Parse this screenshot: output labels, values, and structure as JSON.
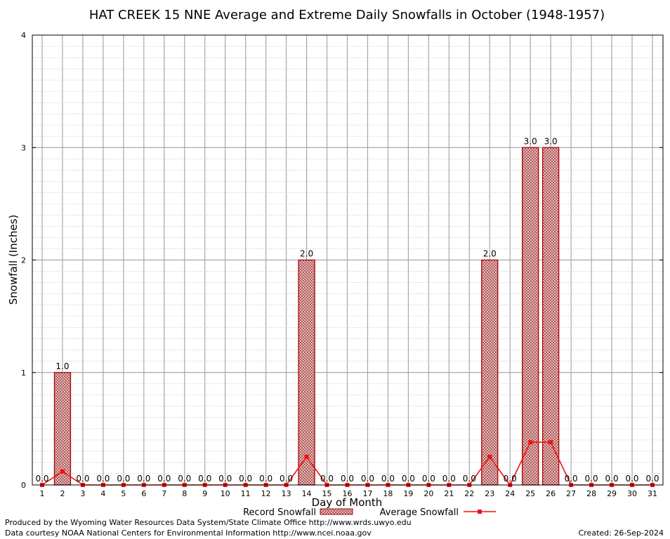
{
  "chart_data": {
    "type": "bar",
    "title": "HAT CREEK 15 NNE Average and Extreme Daily Snowfalls in October (1948-1957)",
    "xlabel": "Day of Month",
    "ylabel": "Snowfall (Inches)",
    "ylim": [
      0,
      4
    ],
    "yticks": [
      "0",
      "1",
      "2",
      "3",
      "4"
    ],
    "categories": [
      "1",
      "2",
      "3",
      "4",
      "5",
      "6",
      "7",
      "8",
      "9",
      "10",
      "11",
      "12",
      "13",
      "14",
      "15",
      "16",
      "17",
      "18",
      "19",
      "20",
      "21",
      "22",
      "23",
      "24",
      "25",
      "26",
      "27",
      "28",
      "29",
      "30",
      "31"
    ],
    "series": [
      {
        "name": "Record Snowfall",
        "type": "bar",
        "color": "#b00000",
        "values": [
          0,
          1,
          0,
          0,
          0,
          0,
          0,
          0,
          0,
          0,
          0,
          0,
          0,
          2,
          0,
          0,
          0,
          0,
          0,
          0,
          0,
          0,
          2,
          0,
          3,
          3,
          0,
          0,
          0,
          0,
          0
        ],
        "labels": [
          "0.0",
          "1.0",
          "0.0",
          "0.0",
          "0.0",
          "0.0",
          "0.0",
          "0.0",
          "0.0",
          "0.0",
          "0.0",
          "0.0",
          "0.0",
          "2.0",
          "0.0",
          "0.0",
          "0.0",
          "0.0",
          "0.0",
          "0.0",
          "0.0",
          "0.0",
          "2.0",
          "0.0",
          "3.0",
          "3.0",
          "0.0",
          "0.0",
          "0.0",
          "0.0",
          "0.0"
        ]
      },
      {
        "name": "Average Snowfall",
        "type": "line",
        "color": "#ee1111",
        "values": [
          0,
          0.12,
          0,
          0,
          0,
          0,
          0,
          0,
          0,
          0,
          0,
          0,
          0,
          0.25,
          0,
          0,
          0,
          0,
          0,
          0,
          0,
          0,
          0.25,
          0,
          0.38,
          0.38,
          0,
          0,
          0,
          0,
          0
        ]
      }
    ],
    "grid": true,
    "legend": "bottom-center"
  },
  "footer": {
    "credit": "Produced by the Wyoming Water Resources Data System/State Climate Office http://www.wrds.uwyo.edu",
    "source": "Data courtesy NOAA National Centers for Environmental Information http://www.ncei.noaa.gov",
    "created": "Created:  26-Sep-2024"
  }
}
